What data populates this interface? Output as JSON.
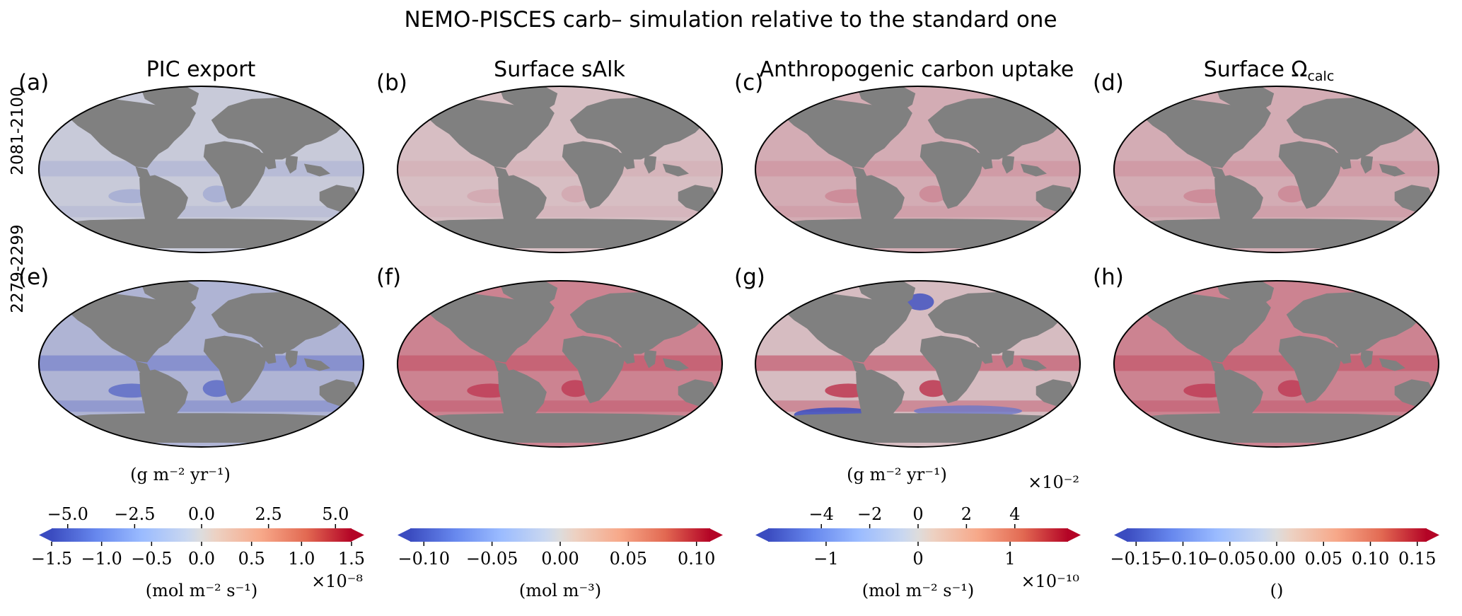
{
  "figure_title": "NEMO-PISCES carb– simulation relative to the standard one",
  "row_labels": [
    "2081-2100",
    "2279-2299"
  ],
  "colors": {
    "ocean_neutral": "#dcdcdc",
    "land": "#808080",
    "strong_blue": "#3a4cc0",
    "strong_red": "#b40426"
  },
  "chart_data": [
    {
      "panel": "(a)",
      "type": "heatmap",
      "title": "PIC export",
      "period": "2081-2100",
      "variable": "PIC export",
      "anomaly_pattern": "weak decrease, strongest in upwelling regions",
      "sign": "negative",
      "intensity": 0.35
    },
    {
      "panel": "(b)",
      "type": "heatmap",
      "title": "Surface sAlk",
      "period": "2081-2100",
      "variable": "Surface sAlk",
      "anomaly_pattern": "uniform slight increase",
      "sign": "positive",
      "intensity": 0.25
    },
    {
      "panel": "(c)",
      "type": "heatmap",
      "title": "Anthropogenic carbon uptake",
      "period": "2081-2100",
      "variable": "Anthropogenic carbon uptake",
      "anomaly_pattern": "moderate increase, maxima in coastal upwelling",
      "sign": "positive",
      "intensity": 0.4
    },
    {
      "panel": "(d)",
      "type": "heatmap",
      "title": "Surface Ωcalc",
      "title_main": "Surface Ω",
      "title_sub": "calc",
      "period": "2081-2100",
      "variable": "Surface calcite saturation",
      "anomaly_pattern": "moderate increase, tropics strongest",
      "sign": "positive",
      "intensity": 0.4
    },
    {
      "panel": "(e)",
      "type": "heatmap",
      "title": "",
      "period": "2279-2299",
      "variable": "PIC export",
      "anomaly_pattern": "strong decrease, equatorial and southern bands",
      "sign": "negative",
      "intensity": 0.8
    },
    {
      "panel": "(f)",
      "type": "heatmap",
      "title": "",
      "period": "2279-2299",
      "variable": "Surface sAlk",
      "anomaly_pattern": "strong basin-wide increase",
      "sign": "positive",
      "intensity": 0.75
    },
    {
      "panel": "(g)",
      "type": "heatmap",
      "title": "",
      "period": "2279-2299",
      "variable": "Anthropogenic carbon uptake",
      "anomaly_pattern": "mixed; increases in upwelling, decreases in Southern Ocean and North Atlantic",
      "sign": "mixed",
      "intensity": 0.8
    },
    {
      "panel": "(h)",
      "type": "heatmap",
      "title": "",
      "period": "2279-2299",
      "variable": "Surface calcite saturation",
      "anomaly_pattern": "strong increase, tropics strongest",
      "sign": "positive",
      "intensity": 0.75
    }
  ],
  "colorbars": [
    {
      "name": "pic",
      "top_unit": "(g m⁻² yr⁻¹)",
      "top_ticks": [
        -5.0,
        -2.5,
        0.0,
        2.5,
        5.0
      ],
      "top_tick_labels": [
        "−5.0",
        "−2.5",
        "0.0",
        "2.5",
        "5.0"
      ],
      "top_range": [
        -5.6,
        5.6
      ],
      "bottom_unit": "(mol m⁻² s⁻¹)",
      "bottom_ticks": [
        -1.5,
        -1.0,
        -0.5,
        0.0,
        0.5,
        1.0,
        1.5
      ],
      "bottom_tick_labels": [
        "−1.5",
        "−1.0",
        "−0.5",
        "0.0",
        "0.5",
        "1.0",
        "1.5"
      ],
      "bottom_range": [
        -1.5,
        1.5
      ],
      "bottom_exponent": "×10⁻⁸",
      "top_exponent": ""
    },
    {
      "name": "salk",
      "top_unit": "",
      "top_ticks": [],
      "top_tick_labels": [],
      "top_range": [
        0,
        1
      ],
      "bottom_unit": "(mol m⁻³)",
      "bottom_ticks": [
        -0.1,
        -0.05,
        0.0,
        0.05,
        0.1
      ],
      "bottom_tick_labels": [
        "−0.10",
        "−0.05",
        "0.00",
        "0.05",
        "0.10"
      ],
      "bottom_range": [
        -0.11,
        0.11
      ],
      "bottom_exponent": "",
      "top_exponent": ""
    },
    {
      "name": "anthc",
      "top_unit": "(g m⁻² yr⁻¹)",
      "top_ticks": [
        -4,
        -2,
        0,
        2,
        4
      ],
      "top_tick_labels": [
        "−4",
        "−2",
        "0",
        "2",
        "4"
      ],
      "top_range": [
        -6.2,
        6.2
      ],
      "top_exponent": "×10⁻²",
      "bottom_unit": "(mol m⁻² s⁻¹)",
      "bottom_ticks": [
        -1,
        0,
        1
      ],
      "bottom_tick_labels": [
        "−1",
        "0",
        "1"
      ],
      "bottom_range": [
        -1.63,
        1.63
      ],
      "bottom_exponent": "×10⁻¹⁰"
    },
    {
      "name": "omega",
      "top_unit": "",
      "top_ticks": [],
      "top_tick_labels": [],
      "top_range": [
        0,
        1
      ],
      "bottom_unit": "()",
      "bottom_ticks": [
        -0.15,
        -0.1,
        -0.05,
        0.0,
        0.05,
        0.1,
        0.15
      ],
      "bottom_tick_labels": [
        "−0.15",
        "−0.10",
        "−0.05",
        "0.00",
        "0.05",
        "0.10",
        "0.15"
      ],
      "bottom_range": [
        -0.16,
        0.16
      ],
      "bottom_exponent": "",
      "top_exponent": ""
    }
  ]
}
